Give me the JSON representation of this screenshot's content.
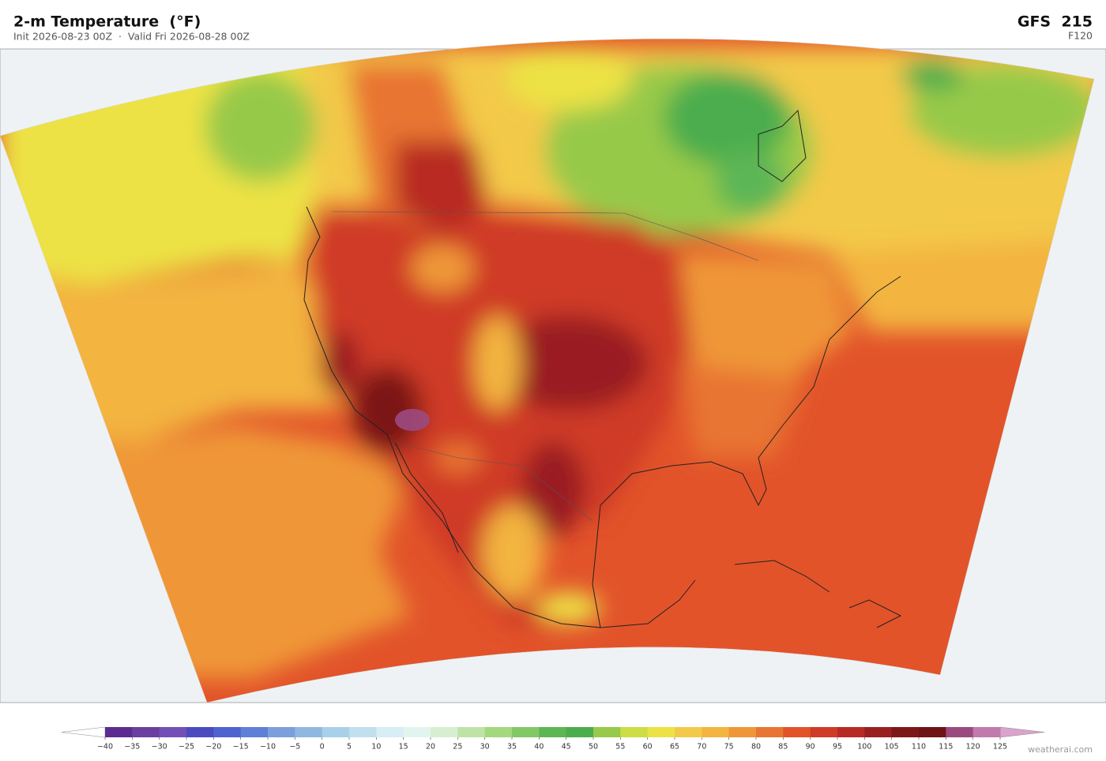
{
  "header": {
    "title": "2-m Temperature  (°F)",
    "subtitle": "Init 2026-08-23 00Z  ·  Valid Fri 2026-08-28 00Z",
    "model": "GFS  215",
    "forecast": "F120"
  },
  "colorbar": {
    "lim": [
      -40,
      125
    ],
    "ticks": [
      {
        "value": -40,
        "label": "−40"
      },
      {
        "value": -35,
        "label": "−35"
      },
      {
        "value": -30,
        "label": "−30"
      },
      {
        "value": -25,
        "label": "−25"
      },
      {
        "value": -20,
        "label": "−20"
      },
      {
        "value": -15,
        "label": "−15"
      },
      {
        "value": -10,
        "label": "−10"
      },
      {
        "value": -5,
        "label": "−5"
      },
      0,
      5,
      10,
      15,
      20,
      25,
      30,
      35,
      40,
      45,
      50,
      55,
      60,
      65,
      70,
      75,
      80,
      85,
      90,
      95,
      100,
      105,
      110,
      115,
      120,
      125
    ],
    "colors": [
      "#5b2d91",
      "#6a3fa0",
      "#7250b5",
      "#4a4bbf",
      "#4f62cf",
      "#5f80d6",
      "#7c9fdc",
      "#8fb8e0",
      "#a8d0e8",
      "#c0e0ef",
      "#d6eef4",
      "#e2f4ee",
      "#d7efd0",
      "#bfe3a6",
      "#a3d87f",
      "#82c865",
      "#5db654",
      "#4bad4d",
      "#97c94a",
      "#cddd45",
      "#ece244",
      "#f3c94a",
      "#f3b441",
      "#ef9738",
      "#e87533",
      "#e2532a",
      "#cf3b26",
      "#b82a24",
      "#9a1f20",
      "#7c1819",
      "#6f1317",
      "#9b4a7f",
      "#c07aab"
    ],
    "under_color": "#ffffff",
    "over_color": "#d9a3cc"
  },
  "watermark": "weatherai.com"
}
